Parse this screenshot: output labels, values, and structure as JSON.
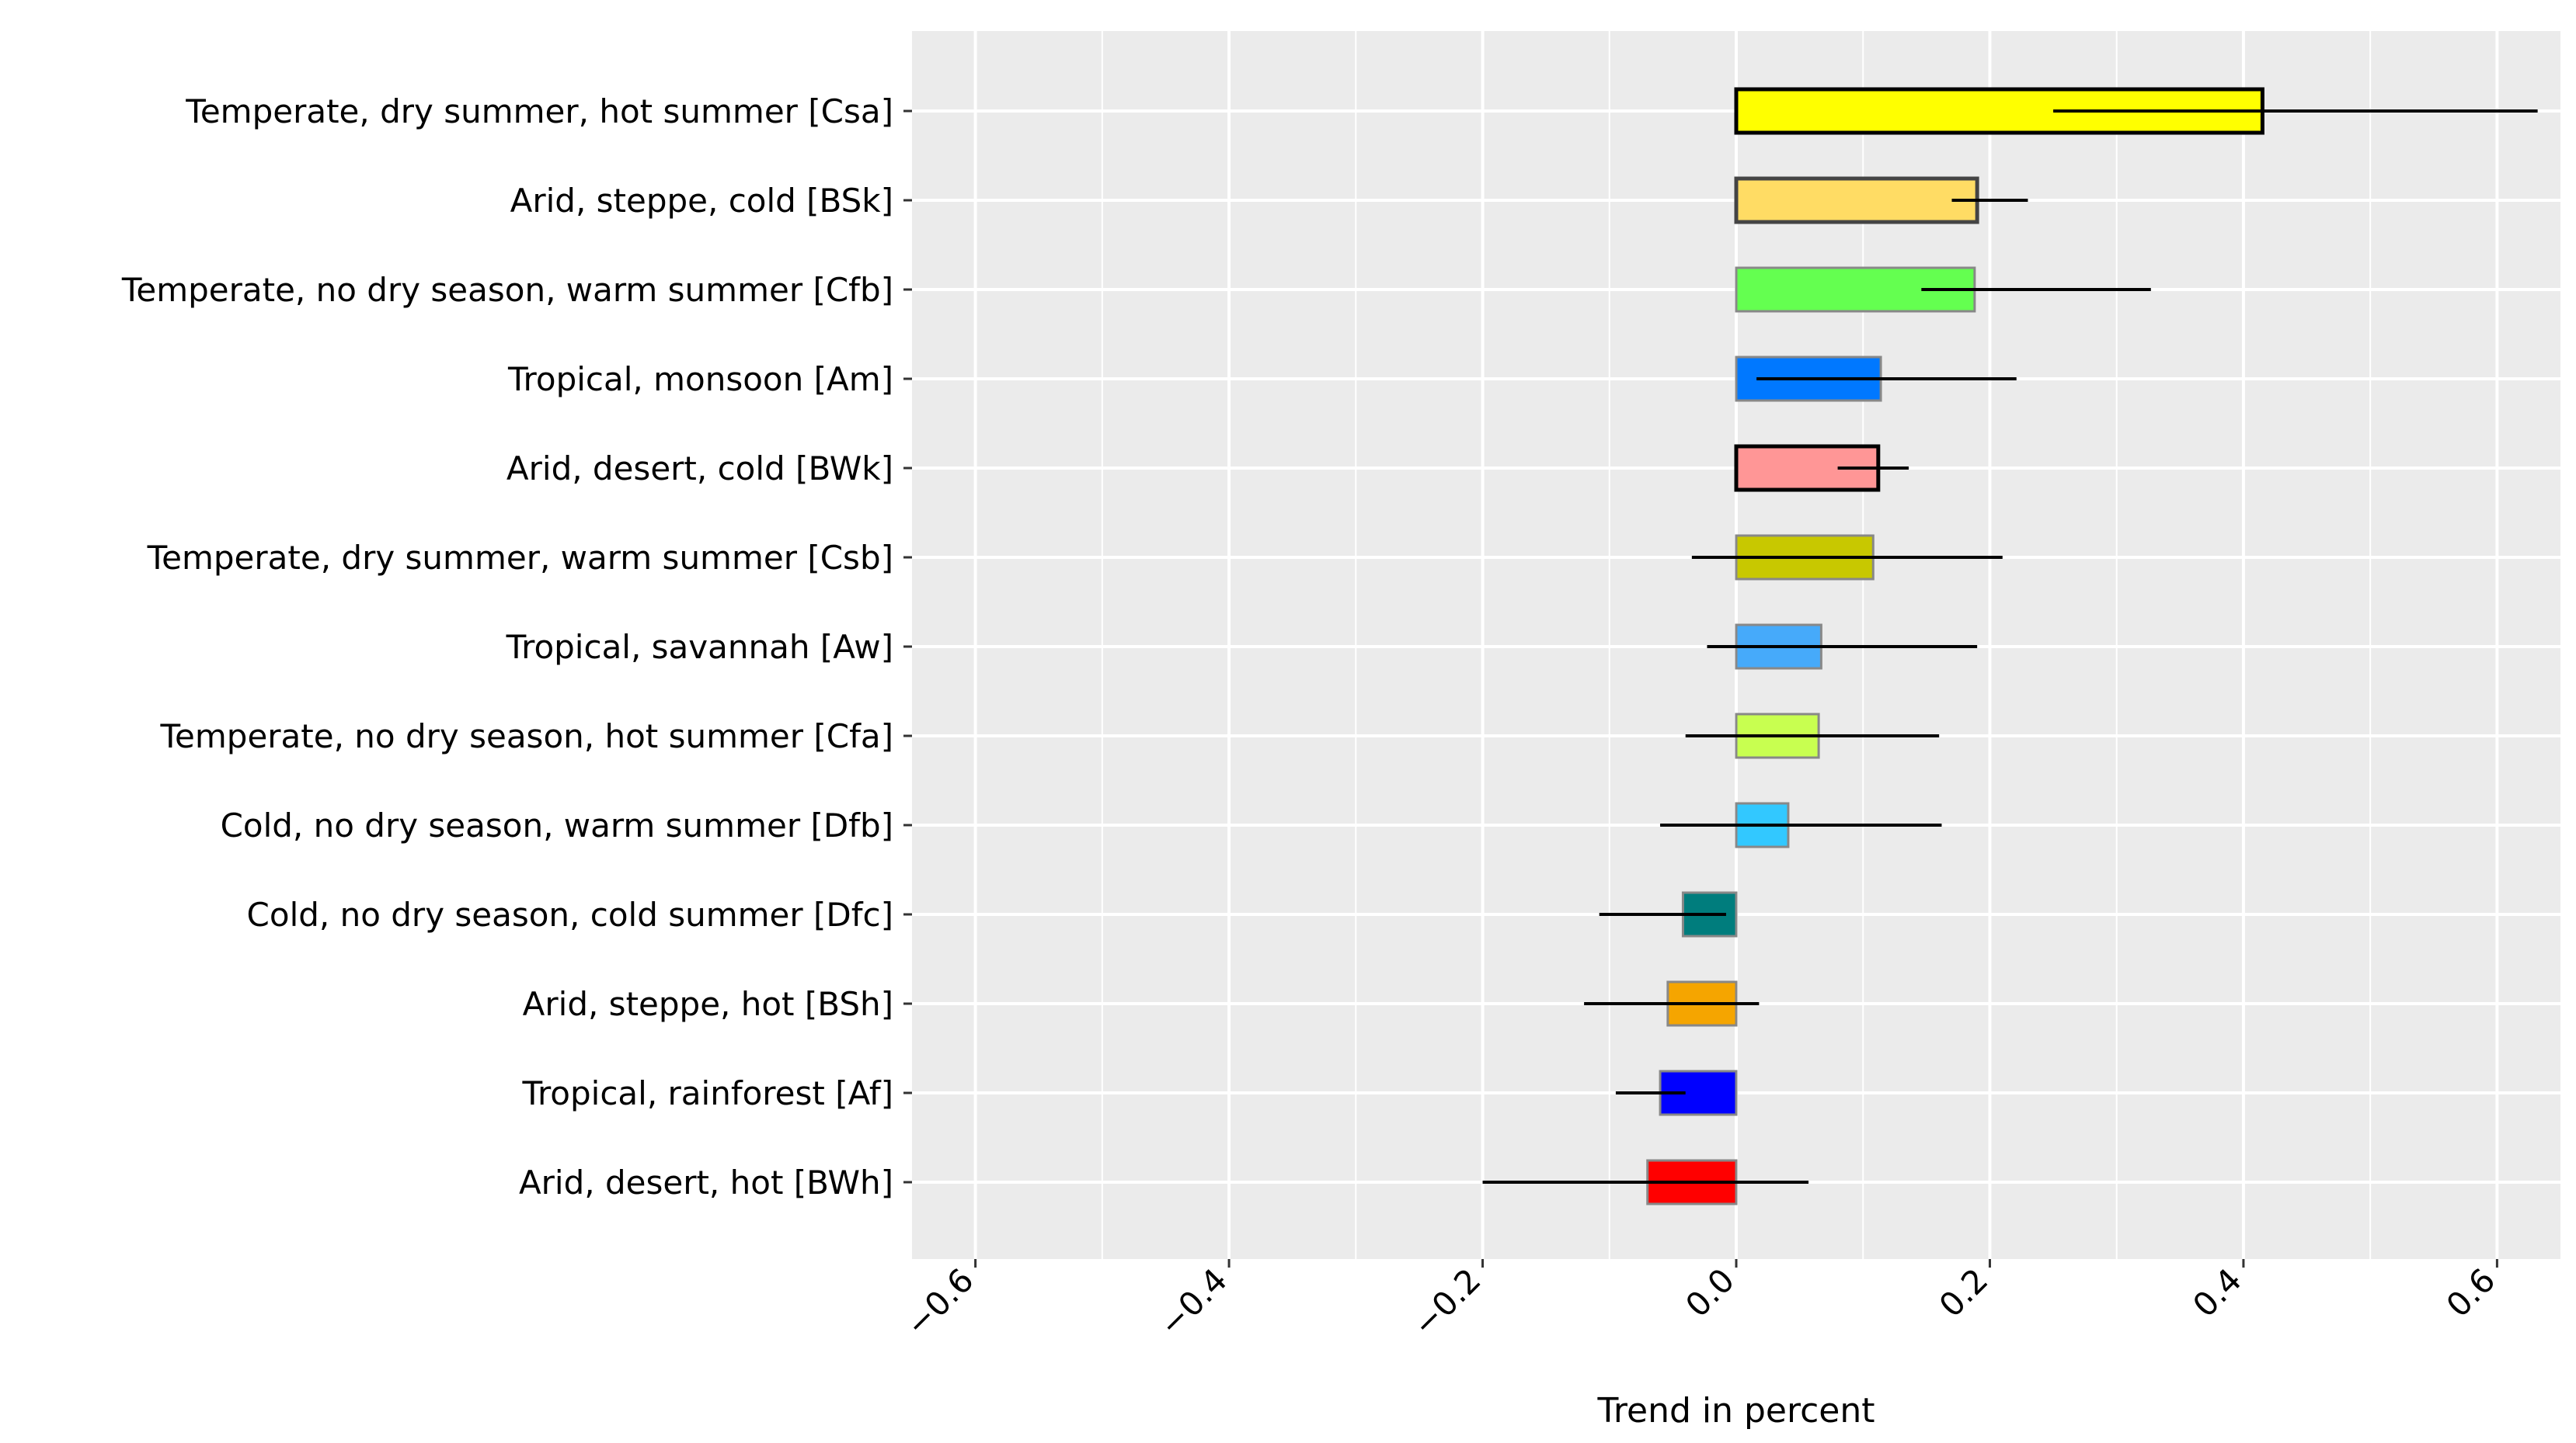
{
  "chart_data": {
    "type": "bar",
    "orientation": "horizontal",
    "title": "",
    "xlabel": "Trend in percent",
    "ylabel": "",
    "xlim": [
      -0.65,
      0.65
    ],
    "xticks": [
      -0.6,
      -0.4,
      -0.2,
      0.0,
      0.2,
      0.4,
      0.6
    ],
    "xtick_labels": [
      "−0.6",
      "−0.4",
      "−0.2",
      "0.0",
      "0.2",
      "0.4",
      "0.6"
    ],
    "grid": true,
    "legend": "none",
    "categories": [
      "Temperate, dry summer, hot summer [Csa]",
      "Arid, steppe, cold [BSk]",
      "Temperate, no dry season, warm summer [Cfb]",
      "Tropical, monsoon [Am]",
      "Arid, desert, cold [BWk]",
      "Temperate, dry summer, warm summer [Csb]",
      "Tropical, savannah [Aw]",
      "Temperate, no dry season, hot summer [Cfa]",
      "Cold, no dry season, warm summer [Dfb]",
      "Cold, no dry season, cold summer [Dfc]",
      "Arid, steppe, hot [BSh]",
      "Tropical, rainforest [Af]",
      "Arid, desert, hot [BWh]"
    ],
    "values": [
      0.415,
      0.19,
      0.188,
      0.114,
      0.112,
      0.108,
      0.067,
      0.065,
      0.041,
      -0.042,
      -0.054,
      -0.06,
      -0.07
    ],
    "error_low": [
      0.25,
      0.17,
      0.146,
      0.016,
      0.08,
      -0.035,
      -0.023,
      -0.04,
      -0.06,
      -0.108,
      -0.12,
      -0.095,
      -0.2
    ],
    "error_high": [
      0.632,
      0.23,
      0.327,
      0.221,
      0.136,
      0.21,
      0.19,
      0.16,
      0.162,
      -0.008,
      0.018,
      -0.04,
      0.057
    ],
    "bar_colors": [
      "#ffff00",
      "#ffdc64",
      "#64ff50",
      "#0078ff",
      "#ff9696",
      "#c8c800",
      "#46aafa",
      "#c8ff50",
      "#32c8ff",
      "#007d7d",
      "#f5a500",
      "#0000ff",
      "#ff0000"
    ],
    "bar_outlines": [
      "#000000",
      "#444444",
      "#888888",
      "#888888",
      "#000000",
      "#888888",
      "#888888",
      "#888888",
      "#888888",
      "#888888",
      "#888888",
      "#888888",
      "#888888"
    ],
    "panel_background": "#ebebeb",
    "grid_color": "#ffffff"
  }
}
